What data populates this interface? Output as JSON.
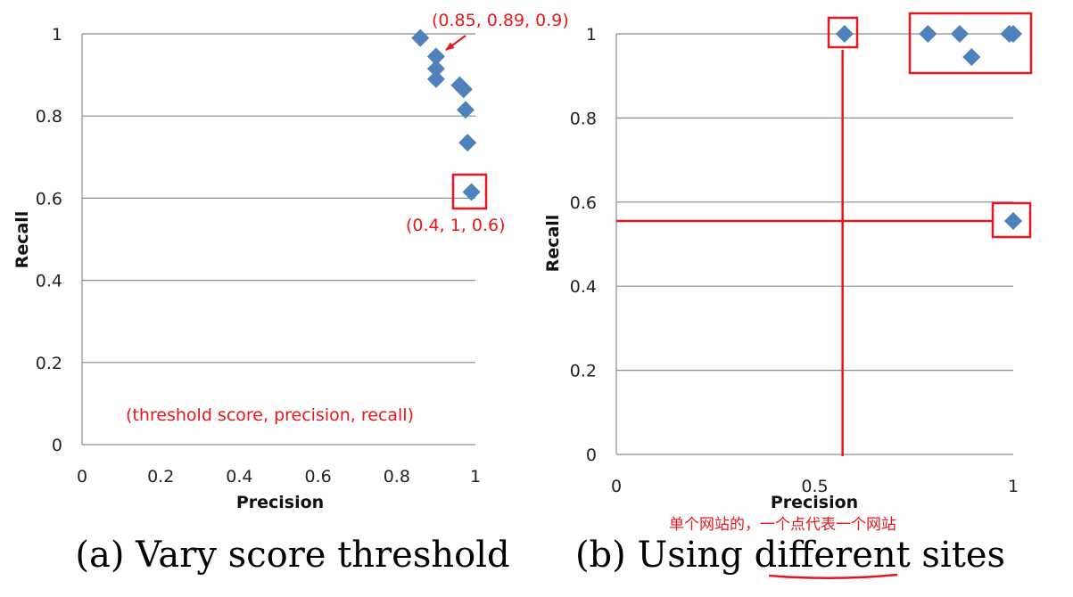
{
  "colors": {
    "marker": "#4f81bd",
    "annotation": "#e8161c",
    "grid": "#8c8c8c"
  },
  "chart_data": [
    {
      "type": "scatter",
      "caption": "(a) Vary score threshold",
      "xlabel": "Precision",
      "ylabel": "Recall",
      "xlim": [
        0,
        1
      ],
      "ylim": [
        0,
        1
      ],
      "xticks": [
        "0",
        "0.2",
        "0.4",
        "0.6",
        "0.8",
        "1"
      ],
      "yticks": [
        "0",
        "0.2",
        "0.4",
        "0.6",
        "0.8",
        "1"
      ],
      "grid": "horizontal",
      "points": [
        {
          "x": 0.86,
          "y": 0.99
        },
        {
          "x": 0.9,
          "y": 0.945
        },
        {
          "x": 0.9,
          "y": 0.915
        },
        {
          "x": 0.9,
          "y": 0.89
        },
        {
          "x": 0.96,
          "y": 0.875
        },
        {
          "x": 0.97,
          "y": 0.865
        },
        {
          "x": 0.975,
          "y": 0.815
        },
        {
          "x": 0.98,
          "y": 0.735
        },
        {
          "x": 0.99,
          "y": 0.615
        }
      ],
      "annotations": [
        "(0.85, 0.89, 0.9)",
        "(0.4, 1, 0.6)",
        "(threshold score, precision, recall)"
      ]
    },
    {
      "type": "scatter",
      "caption": "(b) Using different sites",
      "xlabel": "Precision",
      "ylabel": "Recall",
      "xlim": [
        0,
        1
      ],
      "ylim": [
        0,
        1
      ],
      "xticks": [
        "0",
        "0.5",
        "1"
      ],
      "yticks": [
        "0",
        "0.2",
        "0.4",
        "0.6",
        "0.8",
        "1"
      ],
      "grid": "horizontal",
      "points": [
        {
          "x": 0.575,
          "y": 1.0
        },
        {
          "x": 0.785,
          "y": 1.0
        },
        {
          "x": 0.865,
          "y": 1.0
        },
        {
          "x": 0.895,
          "y": 0.945
        },
        {
          "x": 0.99,
          "y": 1.0
        },
        {
          "x": 1.0,
          "y": 1.0
        },
        {
          "x": 1.0,
          "y": 0.555
        }
      ],
      "reference_lines": {
        "x": 0.57,
        "y": 0.555
      },
      "annotations": [
        "单个网站的，一个点代表一个网站"
      ]
    }
  ]
}
